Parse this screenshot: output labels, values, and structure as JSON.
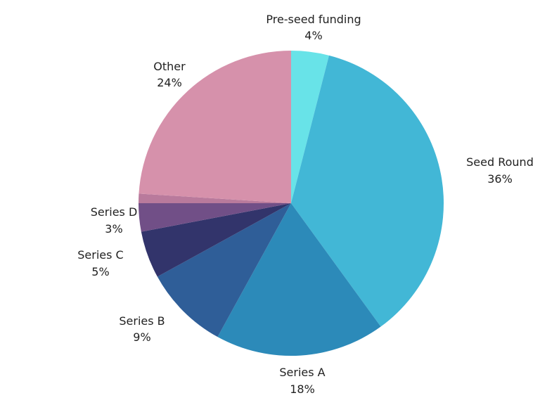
{
  "chart_data": {
    "type": "pie",
    "title": "",
    "slices": [
      {
        "label": "Pre-seed funding",
        "value": 4,
        "display": "4%",
        "color": "#68E3E8"
      },
      {
        "label": "Seed Round",
        "value": 36,
        "display": "36%",
        "color": "#42B7D6"
      },
      {
        "label": "Series A",
        "value": 18,
        "display": "18%",
        "color": "#2C8AB9"
      },
      {
        "label": "Series B",
        "value": 9,
        "display": "9%",
        "color": "#2F5E98"
      },
      {
        "label": "Series C",
        "value": 5,
        "display": "5%",
        "color": "#32346B"
      },
      {
        "label": "Series D",
        "value": 3,
        "display": "3%",
        "color": "#714F87"
      },
      {
        "label": "",
        "value": 1,
        "display": "",
        "color": "#B97A9C"
      },
      {
        "label": "Other",
        "value": 24,
        "display": "24%",
        "color": "#D691AB"
      }
    ],
    "start_angle": "top",
    "direction": "clockwise",
    "legend": "none"
  }
}
